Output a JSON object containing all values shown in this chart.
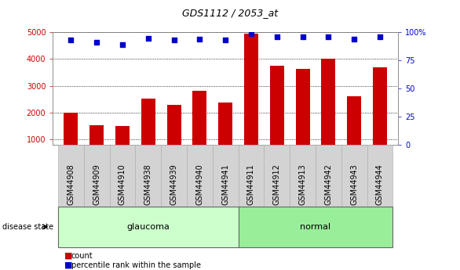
{
  "title": "GDS1112 / 2053_at",
  "categories": [
    "GSM44908",
    "GSM44909",
    "GSM44910",
    "GSM44938",
    "GSM44939",
    "GSM44940",
    "GSM44941",
    "GSM44911",
    "GSM44912",
    "GSM44913",
    "GSM44942",
    "GSM44943",
    "GSM44944"
  ],
  "count_values": [
    2000,
    1520,
    1480,
    2520,
    2280,
    2820,
    2380,
    4950,
    3750,
    3620,
    4020,
    2620,
    3680
  ],
  "percentile_values": [
    93,
    91,
    89,
    95,
    93,
    94,
    93,
    99,
    96,
    96,
    96,
    94,
    96
  ],
  "groups": [
    {
      "label": "glaucoma",
      "indices": [
        0,
        1,
        2,
        3,
        4,
        5,
        6
      ],
      "color": "#ccffcc"
    },
    {
      "label": "normal",
      "indices": [
        7,
        8,
        9,
        10,
        11,
        12
      ],
      "color": "#99ee99"
    }
  ],
  "ylim_left": [
    800,
    5000
  ],
  "ylim_right": [
    0,
    100
  ],
  "yticks_left": [
    1000,
    2000,
    3000,
    4000,
    5000
  ],
  "yticks_right": [
    0,
    25,
    50,
    75,
    100
  ],
  "bar_color": "#cc0000",
  "dot_color": "#0000cc",
  "bar_width": 0.55,
  "background_color": "#ffffff",
  "legend_labels": [
    "count",
    "percentile rank within the sample"
  ],
  "disease_state_label": "disease state",
  "tick_area_color": "#d3d3d3",
  "title_fontsize": 9,
  "axis_fontsize": 7,
  "label_fontsize": 7,
  "group_fontsize": 8
}
